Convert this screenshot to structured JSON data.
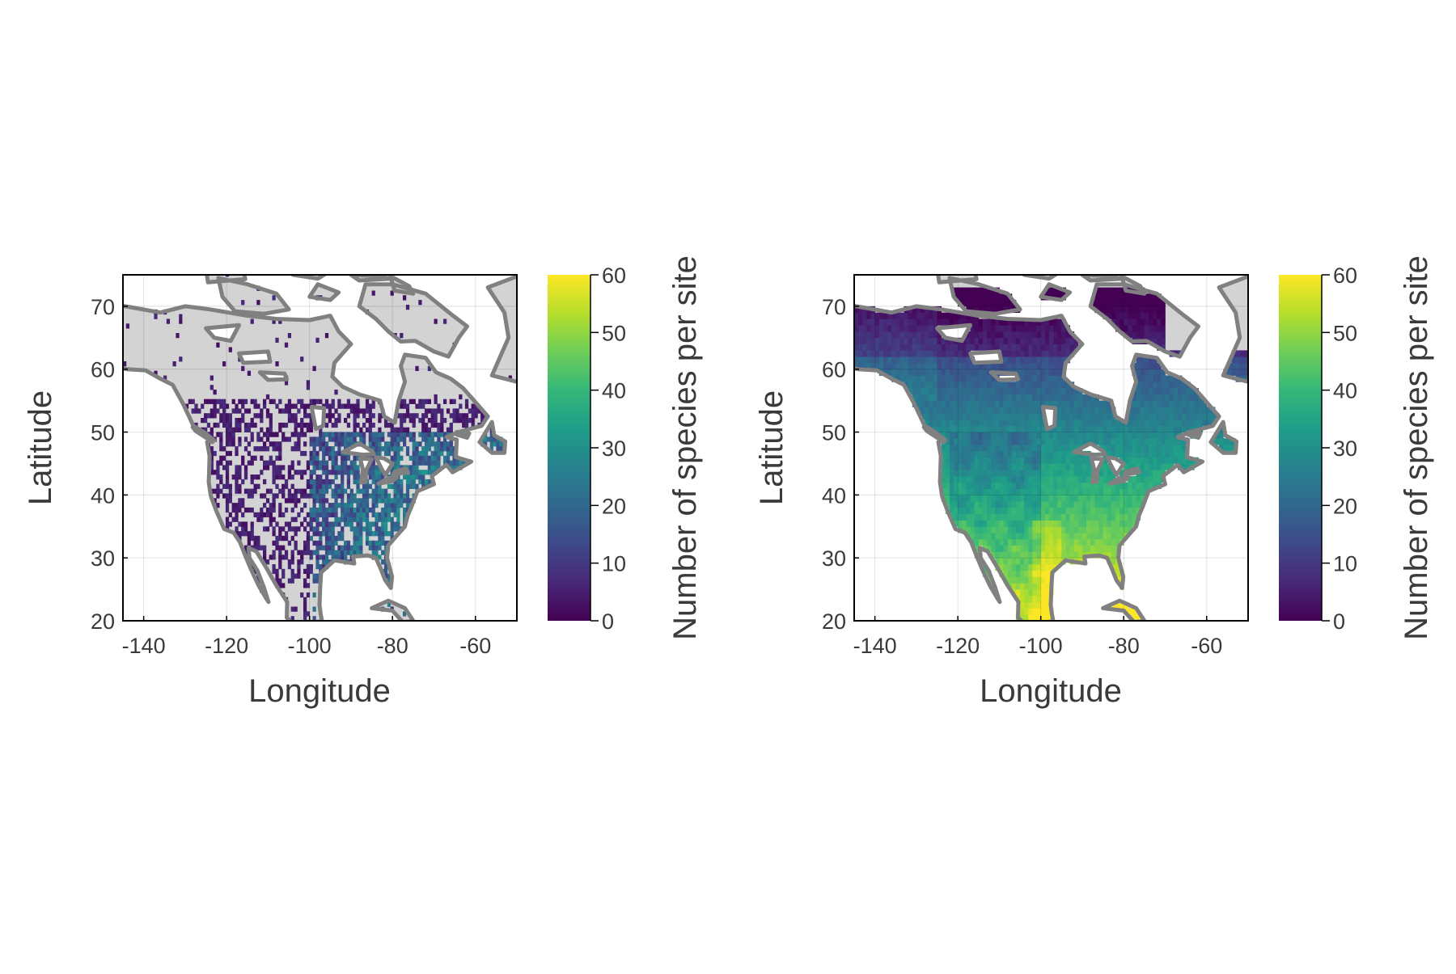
{
  "chart_data": [
    {
      "type": "heatmap",
      "xlabel": "Longitude",
      "ylabel": "Latitude",
      "xlim": [
        -145,
        -50
      ],
      "ylim": [
        20,
        75
      ],
      "x_ticks": [
        "-140",
        "-120",
        "-100",
        "-80",
        "-60"
      ],
      "x_tick_values": [
        -140,
        -120,
        -100,
        -80,
        -60
      ],
      "y_ticks": [
        "20",
        "30",
        "40",
        "50",
        "60",
        "70"
      ],
      "y_tick_values": [
        20,
        30,
        40,
        50,
        60,
        70
      ],
      "grid": true,
      "colormap": "viridis",
      "colorbar": {
        "label": "Number of species per site",
        "ticks": [
          "0",
          "10",
          "20",
          "30",
          "40",
          "50",
          "60"
        ],
        "tick_values": [
          0,
          10,
          20,
          30,
          40,
          50,
          60
        ],
        "range": [
          0,
          60
        ]
      },
      "land_color": "#d3d3d3",
      "coast_color": "#808080",
      "data_pattern": "sparse observations"
    },
    {
      "type": "heatmap",
      "xlabel": "Longitude",
      "ylabel": "Latitude",
      "xlim": [
        -145,
        -50
      ],
      "ylim": [
        20,
        75
      ],
      "x_ticks": [
        "-140",
        "-120",
        "-100",
        "-80",
        "-60"
      ],
      "x_tick_values": [
        -140,
        -120,
        -100,
        -80,
        -60
      ],
      "y_ticks": [
        "20",
        "30",
        "40",
        "50",
        "60",
        "70"
      ],
      "y_tick_values": [
        20,
        30,
        40,
        50,
        60,
        70
      ],
      "grid": true,
      "colormap": "viridis",
      "colorbar": {
        "label": "Number of species per site",
        "ticks": [
          "0",
          "10",
          "20",
          "30",
          "40",
          "50",
          "60"
        ],
        "tick_values": [
          0,
          10,
          20,
          30,
          40,
          50,
          60
        ],
        "range": [
          0,
          60
        ]
      },
      "land_color": "#d3d3d3",
      "coast_color": "#808080",
      "data_pattern": "continuous prediction"
    }
  ],
  "colors": {
    "viridis": [
      "#440154",
      "#482878",
      "#3e4989",
      "#31688e",
      "#26828e",
      "#1f9e89",
      "#35b779",
      "#6ece58",
      "#b5de2b",
      "#fde725"
    ]
  }
}
